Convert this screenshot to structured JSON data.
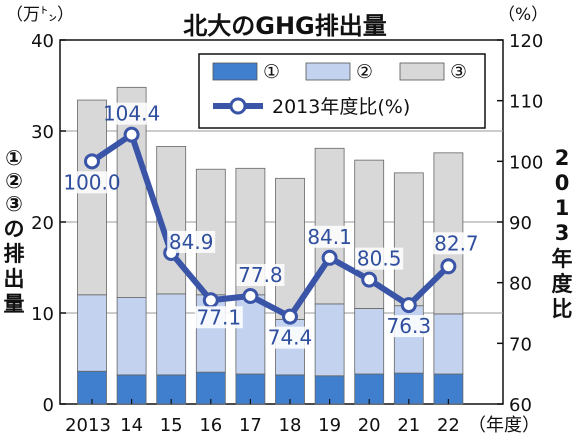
{
  "title": "北大のGHG排出量",
  "unit_left": "（万㌧）",
  "unit_right": "（%）",
  "axis_label_left": [
    "①",
    "②",
    "③",
    "の",
    "排",
    "出",
    "量"
  ],
  "axis_label_right": [
    "2",
    "0",
    "1",
    "3",
    "年",
    "度",
    "比"
  ],
  "x_suffix": "（年度）",
  "legend": {
    "item1": "①",
    "item2": "②",
    "item3": "③",
    "line": "2013年度比(%)"
  },
  "colors": {
    "s1": "#3f7fcd",
    "s2": "#c3d3ef",
    "s3": "#d8d8d8",
    "line": "#3a55a7"
  },
  "chart_data": {
    "type": "bar",
    "categories": [
      "2013",
      "14",
      "15",
      "16",
      "17",
      "18",
      "19",
      "20",
      "21",
      "22"
    ],
    "series": [
      {
        "name": "①",
        "values": [
          3.6,
          3.2,
          3.2,
          3.5,
          3.3,
          3.2,
          3.1,
          3.3,
          3.4,
          3.3
        ]
      },
      {
        "name": "②",
        "values": [
          8.4,
          8.5,
          8.9,
          8.5,
          8.7,
          6.1,
          7.9,
          7.2,
          7.4,
          6.6
        ]
      },
      {
        "name": "③",
        "values": [
          21.4,
          23.1,
          16.2,
          13.8,
          13.9,
          15.5,
          17.1,
          16.3,
          14.6,
          17.7
        ]
      }
    ],
    "line_series": {
      "name": "2013年度比(%)",
      "values": [
        100.0,
        104.4,
        84.9,
        77.1,
        77.8,
        74.4,
        84.1,
        80.5,
        76.3,
        82.7
      ]
    },
    "left_axis": {
      "ylim": [
        0,
        40
      ],
      "ticks": [
        0,
        10,
        20,
        30,
        40
      ]
    },
    "right_axis": {
      "ylim": [
        60,
        120
      ],
      "ticks": [
        60,
        70,
        80,
        90,
        100,
        110,
        120
      ]
    }
  }
}
